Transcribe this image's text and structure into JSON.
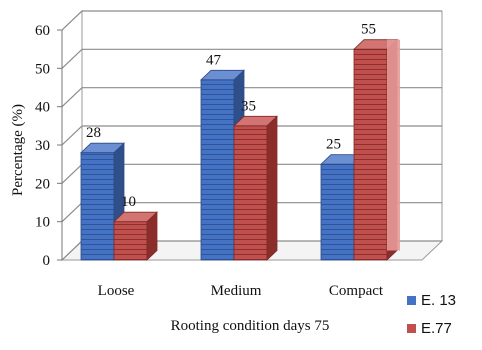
{
  "chart_data": {
    "type": "bar",
    "style": "3d-clustered-column",
    "categories": [
      "Loose",
      "Medium",
      "Compact"
    ],
    "series": [
      {
        "name": "E. 13",
        "values": [
          28,
          47,
          25
        ],
        "color": "#4472C4"
      },
      {
        "name": "E.77",
        "values": [
          10,
          35,
          55
        ],
        "color": "#C0504D"
      }
    ],
    "data_labels": [
      [
        "28",
        "47",
        "25"
      ],
      [
        "10",
        "35",
        "55"
      ]
    ],
    "xlabel": "Rooting condition days 75",
    "ylabel": "Percentage (%)",
    "ylim": [
      0,
      60
    ],
    "yticks": [
      0,
      10,
      20,
      30,
      40,
      50,
      60
    ],
    "grid": true,
    "legend_position": "bottom-right"
  }
}
